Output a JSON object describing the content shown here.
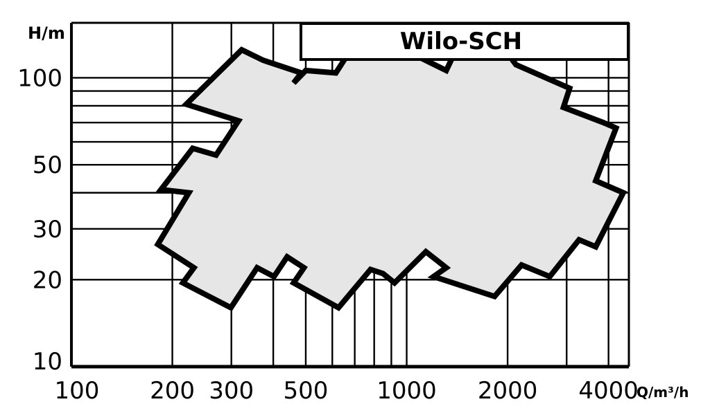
{
  "chart_data": {
    "type": "area",
    "title": "Wilo-SCH",
    "xlabel": "Q/m³/h",
    "ylabel": "H/m",
    "x_scale": "log",
    "y_scale": "log",
    "xlim": [
      100,
      4600
    ],
    "ylim": [
      10,
      155
    ],
    "x_ticks": [
      {
        "value": 100,
        "label": "100"
      },
      {
        "value": 200,
        "label": "200"
      },
      {
        "value": 300,
        "label": "300"
      },
      {
        "value": 500,
        "label": "500"
      },
      {
        "value": 1000,
        "label": "1000"
      },
      {
        "value": 2000,
        "label": "2000"
      },
      {
        "value": 4000,
        "label": "4000"
      }
    ],
    "y_ticks": [
      {
        "value": 10,
        "label": "10"
      },
      {
        "value": 20,
        "label": "20"
      },
      {
        "value": 30,
        "label": "30"
      },
      {
        "value": 50,
        "label": "50"
      },
      {
        "value": 100,
        "label": "100"
      }
    ],
    "x_grid": [
      200,
      300,
      400,
      500,
      600,
      700,
      800,
      900,
      1000,
      2000,
      3000,
      4000
    ],
    "y_grid": [
      20,
      30,
      40,
      50,
      60,
      70,
      80,
      90,
      100
    ],
    "grid": true,
    "region": {
      "fill": "#e6e6e6",
      "stroke": "#000000",
      "boundary": [
        {
          "x": 322,
          "y": 125
        },
        {
          "x": 373,
          "y": 115
        },
        {
          "x": 485,
          "y": 104
        },
        {
          "x": 460,
          "y": 96
        },
        {
          "x": 500,
          "y": 106
        },
        {
          "x": 615,
          "y": 104
        },
        {
          "x": 708,
          "y": 134
        },
        {
          "x": 1012,
          "y": 123
        },
        {
          "x": 1312,
          "y": 106
        },
        {
          "x": 1444,
          "y": 134
        },
        {
          "x": 2015,
          "y": 120
        },
        {
          "x": 2118,
          "y": 111
        },
        {
          "x": 3063,
          "y": 92
        },
        {
          "x": 2935,
          "y": 79
        },
        {
          "x": 3856,
          "y": 70
        },
        {
          "x": 4212,
          "y": 67
        },
        {
          "x": 3663,
          "y": 44
        },
        {
          "x": 4427,
          "y": 40
        },
        {
          "x": 3663,
          "y": 26
        },
        {
          "x": 3267,
          "y": 27.5
        },
        {
          "x": 2672,
          "y": 20.5
        },
        {
          "x": 2201,
          "y": 22.5
        },
        {
          "x": 1829,
          "y": 17.5
        },
        {
          "x": 1203,
          "y": 20.5
        },
        {
          "x": 1312,
          "y": 22
        },
        {
          "x": 1141,
          "y": 25
        },
        {
          "x": 920,
          "y": 19.5
        },
        {
          "x": 850,
          "y": 21
        },
        {
          "x": 780,
          "y": 21.7
        },
        {
          "x": 626,
          "y": 16
        },
        {
          "x": 460,
          "y": 19.5
        },
        {
          "x": 494,
          "y": 22
        },
        {
          "x": 440,
          "y": 24
        },
        {
          "x": 402,
          "y": 20.5
        },
        {
          "x": 358,
          "y": 22
        },
        {
          "x": 299,
          "y": 16
        },
        {
          "x": 215,
          "y": 19.5
        },
        {
          "x": 232,
          "y": 22
        },
        {
          "x": 181,
          "y": 26.5
        },
        {
          "x": 224,
          "y": 40
        },
        {
          "x": 185,
          "y": 41
        },
        {
          "x": 230,
          "y": 57
        },
        {
          "x": 270,
          "y": 54
        },
        {
          "x": 315,
          "y": 71
        },
        {
          "x": 220,
          "y": 81
        },
        {
          "x": 260,
          "y": 98
        }
      ]
    }
  }
}
